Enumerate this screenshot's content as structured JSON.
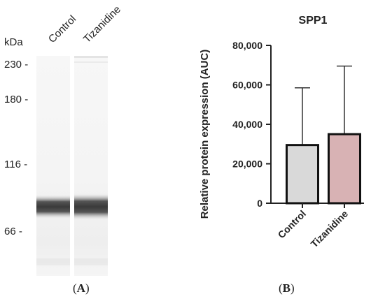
{
  "blot": {
    "unit_label": "kDa",
    "lanes": [
      "Control",
      "Tizanidine"
    ],
    "markers": [
      "230",
      "180",
      "116",
      "66"
    ],
    "panel_label": "A"
  },
  "chart_data": {
    "type": "bar",
    "title": "SPP1",
    "ylabel": "Relative protein expression  (AUC)",
    "xlabel": "",
    "categories": [
      "Control",
      "Tizanidine"
    ],
    "values": [
      29500,
      35000
    ],
    "error_upper": [
      58500,
      69500
    ],
    "ylim": [
      0,
      80000
    ],
    "yticks": [
      "0",
      "20,000",
      "40,000",
      "60,000",
      "80,000"
    ],
    "ytick_values": [
      0,
      20000,
      40000,
      60000,
      80000
    ],
    "bar_colors": [
      "#d9d9d9",
      "#d8b2b4"
    ],
    "panel_label": "B"
  }
}
